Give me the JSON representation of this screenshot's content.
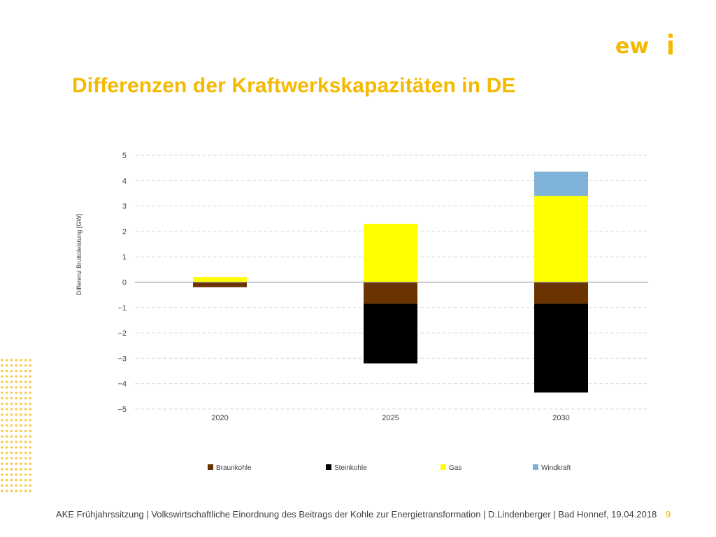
{
  "slide": {
    "title": "Differenzen der Kraftwerkskapazitäten in DE",
    "logo_text": "ewi",
    "footer": "AKE Frühjahrssitzung | Volkswirtschaftliche Einordnung des Beitrags der Kohle zur Energietransformation | D.Lindenberger | Bad Honnef, 19.04.2018",
    "page_number": "9"
  },
  "colors": {
    "title": "#f4b900",
    "Braunkohle": "#6b3300",
    "Steinkohle": "#000000",
    "Gas": "#ffff00",
    "Windkraft": "#7fb2d9",
    "gridline": "#d9d9d9",
    "zero_line": "#a6a6a6"
  },
  "chart_data": {
    "type": "bar",
    "stacked": true,
    "categories": [
      "2020",
      "2025",
      "2030"
    ],
    "ylabel": "Differenz Bruttoleistung  [GW]",
    "xlabel": "",
    "ylim": [
      -5,
      5
    ],
    "yticks": [
      "5",
      "4",
      "3",
      "2",
      "1",
      "0",
      "−1",
      "−2",
      "−3",
      "−4",
      "−5"
    ],
    "ytick_values": [
      5,
      4,
      3,
      2,
      1,
      0,
      -1,
      -2,
      -3,
      -4,
      -5
    ],
    "grid": true,
    "legend_position": "bottom",
    "series": [
      {
        "name": "Braunkohle",
        "values": [
          -0.2,
          -0.85,
          -0.85
        ]
      },
      {
        "name": "Steinkohle",
        "values": [
          0,
          -2.35,
          -3.5
        ]
      },
      {
        "name": "Gas",
        "values": [
          0.2,
          2.3,
          3.4
        ]
      },
      {
        "name": "Windkraft",
        "values": [
          0,
          0,
          0.95
        ]
      }
    ]
  }
}
